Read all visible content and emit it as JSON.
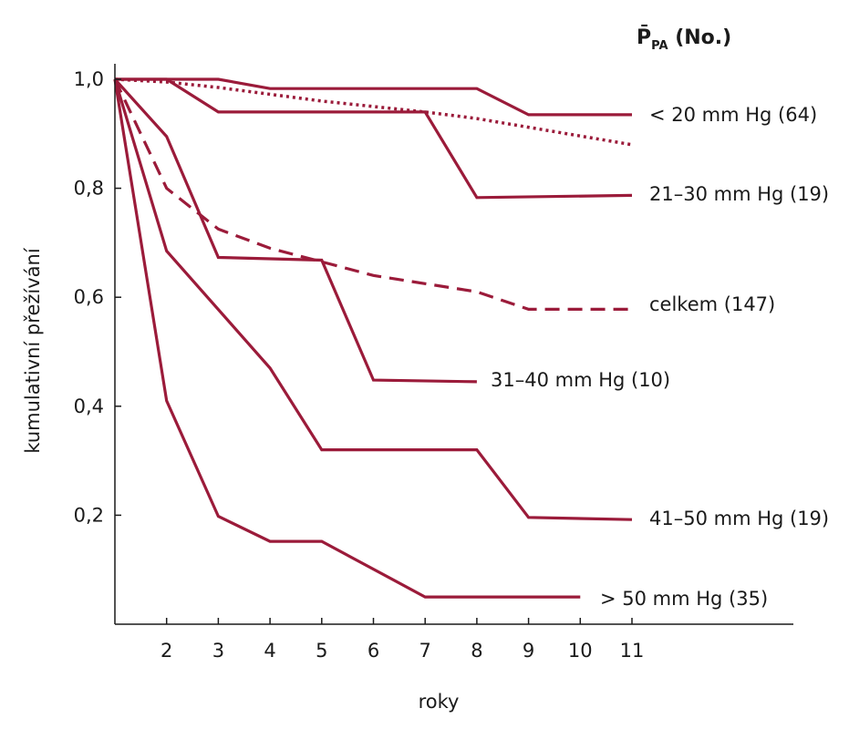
{
  "chart_data": {
    "type": "line",
    "xlabel": "roky",
    "ylabel": "kumulativní přežívání",
    "xlim": [
      1,
      11
    ],
    "ylim": [
      0,
      1.0
    ],
    "x_ticks": [
      {
        "value": 2,
        "label": "2"
      },
      {
        "value": 3,
        "label": "3"
      },
      {
        "value": 4,
        "label": "4"
      },
      {
        "value": 5,
        "label": "5"
      },
      {
        "value": 6,
        "label": "6"
      },
      {
        "value": 7,
        "label": "7"
      },
      {
        "value": 8,
        "label": "8"
      },
      {
        "value": 9,
        "label": "9"
      },
      {
        "value": 10,
        "label": "10"
      },
      {
        "value": 11,
        "label": "11"
      }
    ],
    "y_ticks": [
      {
        "value": 0.2,
        "label": "0,2"
      },
      {
        "value": 0.4,
        "label": "0,4"
      },
      {
        "value": 0.6,
        "label": "0,6"
      },
      {
        "value": 0.8,
        "label": "0,8"
      },
      {
        "value": 1.0,
        "label": "1,0"
      }
    ],
    "grid": false,
    "legend_title": {
      "main": "P̄",
      "sub": "PA",
      "suffix": " (No.)"
    },
    "line_color": "#9b1b3a",
    "series": [
      {
        "name": "< 20 mm Hg (64)",
        "style": "solid",
        "points": [
          [
            1,
            1.0
          ],
          [
            3,
            1.0
          ],
          [
            4,
            0.983
          ],
          [
            8,
            0.983
          ],
          [
            9,
            0.935
          ],
          [
            11,
            0.935
          ]
        ]
      },
      {
        "name": "21–30 mm Hg (19)",
        "style": "solid",
        "points": [
          [
            1,
            1.0
          ],
          [
            2,
            1.0
          ],
          [
            3,
            0.94
          ],
          [
            7,
            0.94
          ],
          [
            8,
            0.783
          ],
          [
            11,
            0.787
          ]
        ]
      },
      {
        "name": "celkem (147)",
        "style": "dashed",
        "points": [
          [
            1,
            1.0
          ],
          [
            2,
            0.8
          ],
          [
            3,
            0.725
          ],
          [
            4,
            0.69
          ],
          [
            5,
            0.665
          ],
          [
            6,
            0.64
          ],
          [
            7,
            0.625
          ],
          [
            8,
            0.61
          ],
          [
            9,
            0.578
          ],
          [
            11,
            0.578
          ]
        ]
      },
      {
        "name": "31–40 mm Hg (10)",
        "style": "solid",
        "points": [
          [
            1,
            1.0
          ],
          [
            2,
            0.895
          ],
          [
            3,
            0.673
          ],
          [
            5,
            0.668
          ],
          [
            6,
            0.448
          ],
          [
            8,
            0.445
          ]
        ]
      },
      {
        "name": "41–50 mm Hg (19)",
        "style": "solid",
        "points": [
          [
            1,
            1.0
          ],
          [
            2,
            0.685
          ],
          [
            4,
            0.47
          ],
          [
            5,
            0.32
          ],
          [
            8,
            0.32
          ],
          [
            9,
            0.196
          ],
          [
            11,
            0.192
          ]
        ]
      },
      {
        "name": "> 50 mm Hg (35)",
        "style": "solid",
        "points": [
          [
            1,
            1.0
          ],
          [
            2,
            0.41
          ],
          [
            3,
            0.198
          ],
          [
            4,
            0.152
          ],
          [
            5,
            0.152
          ],
          [
            7,
            0.05
          ],
          [
            10,
            0.05
          ]
        ]
      },
      {
        "name": "",
        "style": "dotted",
        "points": [
          [
            1,
            1.0
          ],
          [
            2,
            0.995
          ],
          [
            3,
            0.985
          ],
          [
            5,
            0.96
          ],
          [
            7,
            0.94
          ],
          [
            8,
            0.928
          ],
          [
            11,
            0.88
          ]
        ]
      }
    ]
  }
}
